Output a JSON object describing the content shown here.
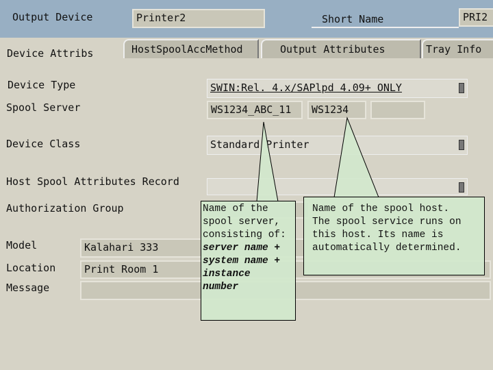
{
  "header": {
    "output_device_label": "Output Device",
    "output_device_value": "Printer2",
    "short_name_label": "Short Name",
    "short_name_value": "PRI2"
  },
  "tabs": [
    {
      "label": "Device Attribs",
      "active": true
    },
    {
      "label": "HostSpoolAccMethod"
    },
    {
      "label": "Output Attributes"
    },
    {
      "label": "Tray Info"
    }
  ],
  "form": {
    "device_type": {
      "label": "Device Type",
      "value": "SWIN:Rel. 4.x/SAPlpd 4.09+ ONLY"
    },
    "spool_server": {
      "label": "Spool Server",
      "server": "WS1234_ABC_11",
      "host": "WS1234",
      "extra": ""
    },
    "device_class": {
      "label": "Device Class",
      "value": "Standard Printer"
    },
    "host_spool": {
      "label": "Host Spool Attributes Record",
      "value": ""
    },
    "authorization_group": {
      "label": "Authorization Group",
      "value": ""
    },
    "model": {
      "label": "Model",
      "value": "Kalahari 333"
    },
    "location": {
      "label": "Location",
      "value": "Print Room 1"
    },
    "message": {
      "label": "Message",
      "value": ""
    }
  },
  "callouts": {
    "server": {
      "line1": "Name of the",
      "line2": "spool server,",
      "line3": "consisting of:",
      "b1": "server name +",
      "b2": "system name +",
      "b3": "instance",
      "b4": "number"
    },
    "host": {
      "line1": "Name of the spool host.",
      "line2": "The spool service runs on",
      "line3": "this host. Its name is",
      "line4": "automatically determined."
    }
  },
  "colors": {
    "header": "#98afc3",
    "callout": "#d2e8cc",
    "background": "#d6d3c6"
  }
}
